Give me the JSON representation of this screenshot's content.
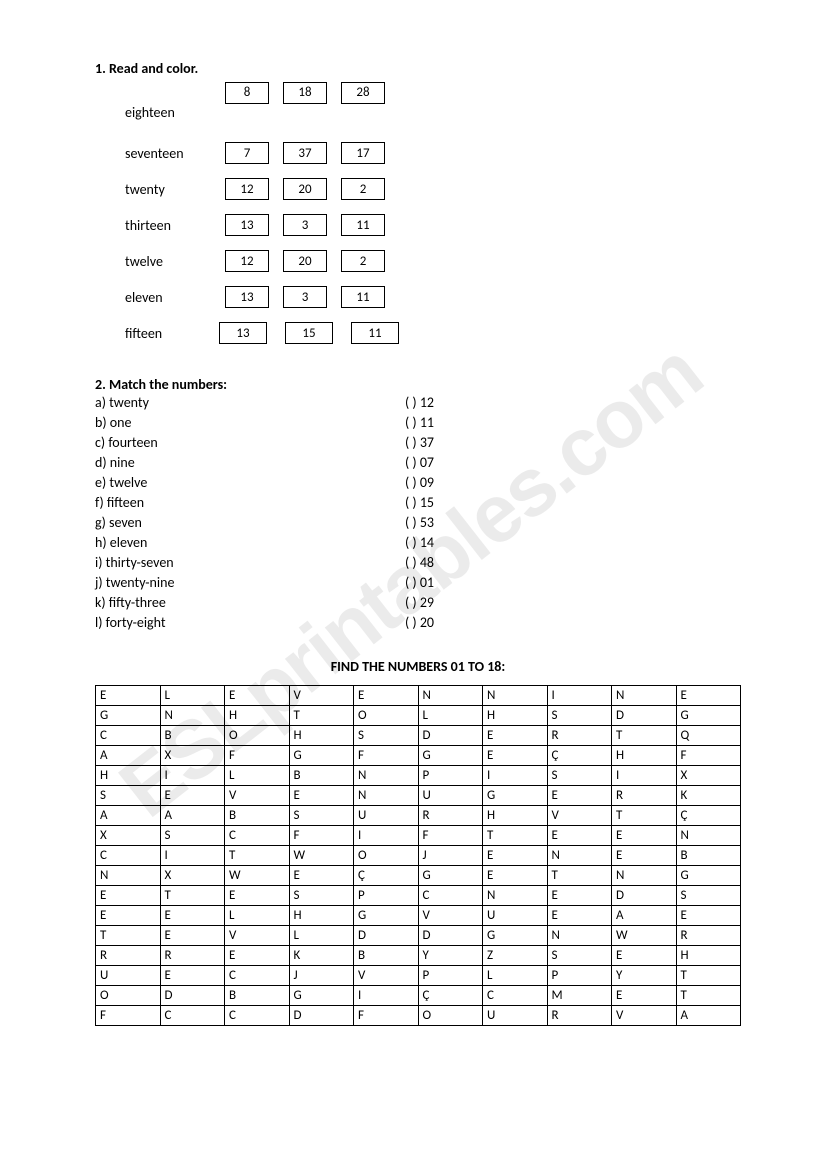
{
  "watermark": "ESLprintables.com",
  "section1": {
    "title": "1. Read and color.",
    "rows": [
      {
        "label": "eighteen",
        "boxes": [
          "8",
          "18",
          "28"
        ],
        "offset": true
      },
      {
        "label": "seventeen",
        "boxes": [
          "7",
          "37",
          "17"
        ]
      },
      {
        "label": "twenty",
        "boxes": [
          "12",
          "20",
          "2"
        ]
      },
      {
        "label": "thirteen",
        "boxes": [
          "13",
          "3",
          "11"
        ]
      },
      {
        "label": "twelve",
        "boxes": [
          "12",
          "20",
          "2"
        ]
      },
      {
        "label": "eleven",
        "boxes": [
          "13",
          "3",
          "11"
        ]
      },
      {
        "label": "fifteen",
        "boxes": [
          "13",
          "15",
          "11"
        ],
        "last": true
      }
    ]
  },
  "section2": {
    "title": "2. Match the numbers:",
    "left": [
      "a) twenty",
      "b) one",
      "c) fourteen",
      "d) nine",
      "e) twelve",
      "f) fifteen",
      "g) seven",
      "h) eleven",
      "i) thirty-seven",
      "j) twenty-nine",
      "k) fifty-three",
      "l) forty-eight"
    ],
    "right": [
      "(    ) 12",
      "(    ) 11",
      "(    ) 37",
      "(    ) 07",
      "(    ) 09",
      "(    ) 15",
      "(    ) 53",
      "(    ) 14",
      "(    ) 48",
      "(    ) 01",
      "(    ) 29",
      "(    ) 20"
    ]
  },
  "section3": {
    "title": "FIND THE NUMBERS 01 TO 18:",
    "grid": [
      [
        "E",
        "L",
        "E",
        "V",
        "E",
        "N",
        "N",
        "I",
        "N",
        "E"
      ],
      [
        "G",
        "N",
        "H",
        "T",
        "O",
        "L",
        "H",
        "S",
        "D",
        "G"
      ],
      [
        "C",
        "B",
        "O",
        "H",
        "S",
        "D",
        "E",
        "R",
        "T",
        "Q"
      ],
      [
        "A",
        "X",
        "F",
        "G",
        "F",
        "G",
        "E",
        "Ç",
        "H",
        "F"
      ],
      [
        "H",
        "I",
        "L",
        "B",
        "N",
        "P",
        "I",
        "S",
        "I",
        "X"
      ],
      [
        "S",
        "E",
        "V",
        "E",
        "N",
        "U",
        "G",
        "E",
        "R",
        "K"
      ],
      [
        "A",
        "A",
        "B",
        "S",
        "U",
        "R",
        "H",
        "V",
        "T",
        "Ç"
      ],
      [
        "X",
        "S",
        "C",
        "F",
        "I",
        "F",
        "T",
        "E",
        "E",
        "N"
      ],
      [
        "C",
        "I",
        "T",
        "W",
        "O",
        "J",
        "E",
        "N",
        "E",
        "B"
      ],
      [
        "N",
        "X",
        "W",
        "E",
        "Ç",
        "G",
        "E",
        "T",
        "N",
        "G"
      ],
      [
        "E",
        "T",
        "E",
        "S",
        "P",
        "C",
        "N",
        "E",
        "D",
        "S"
      ],
      [
        "E",
        "E",
        "L",
        "H",
        "G",
        "V",
        "U",
        "E",
        "A",
        "E"
      ],
      [
        "T",
        "E",
        "V",
        "L",
        "D",
        "D",
        "G",
        "N",
        "W",
        "R"
      ],
      [
        "R",
        "R",
        "E",
        "K",
        "B",
        "Y",
        "Z",
        "S",
        "E",
        "H"
      ],
      [
        "U",
        "E",
        "C",
        "J",
        "V",
        "P",
        "L",
        "P",
        "Y",
        "T"
      ],
      [
        "O",
        "D",
        "B",
        "G",
        "I",
        "Ç",
        "C",
        "M",
        "E",
        "T"
      ],
      [
        "F",
        "C",
        "C",
        "D",
        "F",
        "O",
        "U",
        "R",
        "V",
        "A"
      ]
    ]
  }
}
